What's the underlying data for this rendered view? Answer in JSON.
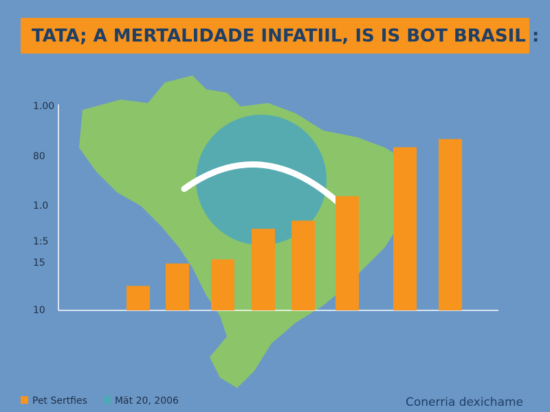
{
  "chart_data": {
    "type": "bar",
    "title": "TATA; A MERTALIDADE INFATIIL, IS IS BOT BRASIL :",
    "y_axis_labels": [
      "1.00",
      "80",
      "1.0",
      "1:5",
      "15",
      "10"
    ],
    "categories": [
      null,
      null,
      null,
      null,
      null,
      null,
      null,
      null
    ],
    "values": [
      12,
      23,
      25,
      40,
      44,
      56,
      80,
      84
    ],
    "color": "#f7941d",
    "ylim": [
      0,
      100
    ],
    "legend": [
      {
        "name": "Pet Sertfies",
        "color": "#f7941d"
      },
      {
        "name": "Mät 20, 2006",
        "color": "#4fa8b8"
      }
    ],
    "source": "Conerria dexichame"
  }
}
